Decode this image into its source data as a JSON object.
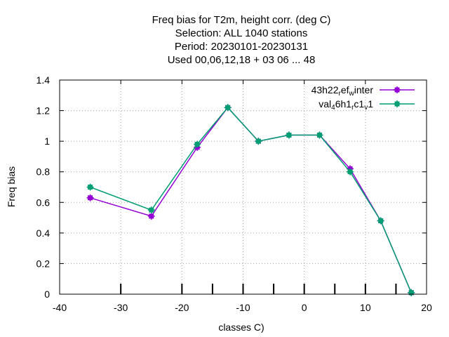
{
  "chart_data": {
    "type": "line",
    "title_lines": [
      "Freq bias  for T2m, height corr. (deg C)",
      "Selection: ALL   1040 stations",
      "Period: 20230101-20230131",
      "Used  00,06,12,18  + 03 06 ... 48"
    ],
    "xlabel": "classes C)",
    "ylabel": "Freq bias",
    "xlim": [
      -40,
      20
    ],
    "ylim": [
      0,
      1.4
    ],
    "xticks": [
      "-40",
      "-30",
      "-20",
      "-10",
      "0",
      "10",
      "20"
    ],
    "xtick_values": [
      -40,
      -30,
      -20,
      -10,
      0,
      10,
      20
    ],
    "yticks": [
      "0",
      "0.2",
      "0.4",
      "0.6",
      "0.8",
      "1",
      "1.2",
      "1.4"
    ],
    "ytick_values": [
      0,
      0.2,
      0.4,
      0.6,
      0.8,
      1.0,
      1.2,
      1.4
    ],
    "class_marks": [
      -30,
      -20,
      -15,
      -10,
      -5,
      0,
      5,
      10,
      15
    ],
    "grid": true,
    "legend_position": "top-right",
    "series": [
      {
        "legend_parts": [
          "43h22",
          "r",
          "ef",
          "w",
          "inter"
        ],
        "color": "#9400d3",
        "x": [
          -35,
          -25,
          -17.5,
          -12.5,
          -7.5,
          -2.5,
          2.5,
          7.5,
          12.5,
          17.5
        ],
        "y": [
          0.63,
          0.51,
          0.96,
          1.22,
          1.0,
          1.04,
          1.04,
          0.82,
          0.48,
          0.01
        ]
      },
      {
        "legend_parts": [
          "val",
          "4",
          "6h1",
          "r",
          "c1",
          "v",
          "1"
        ],
        "color": "#009e73",
        "x": [
          -35,
          -25,
          -17.5,
          -12.5,
          -7.5,
          -2.5,
          2.5,
          7.5,
          12.5,
          17.5
        ],
        "y": [
          0.7,
          0.55,
          0.98,
          1.22,
          1.0,
          1.04,
          1.04,
          0.8,
          0.48,
          0.01
        ]
      }
    ]
  }
}
